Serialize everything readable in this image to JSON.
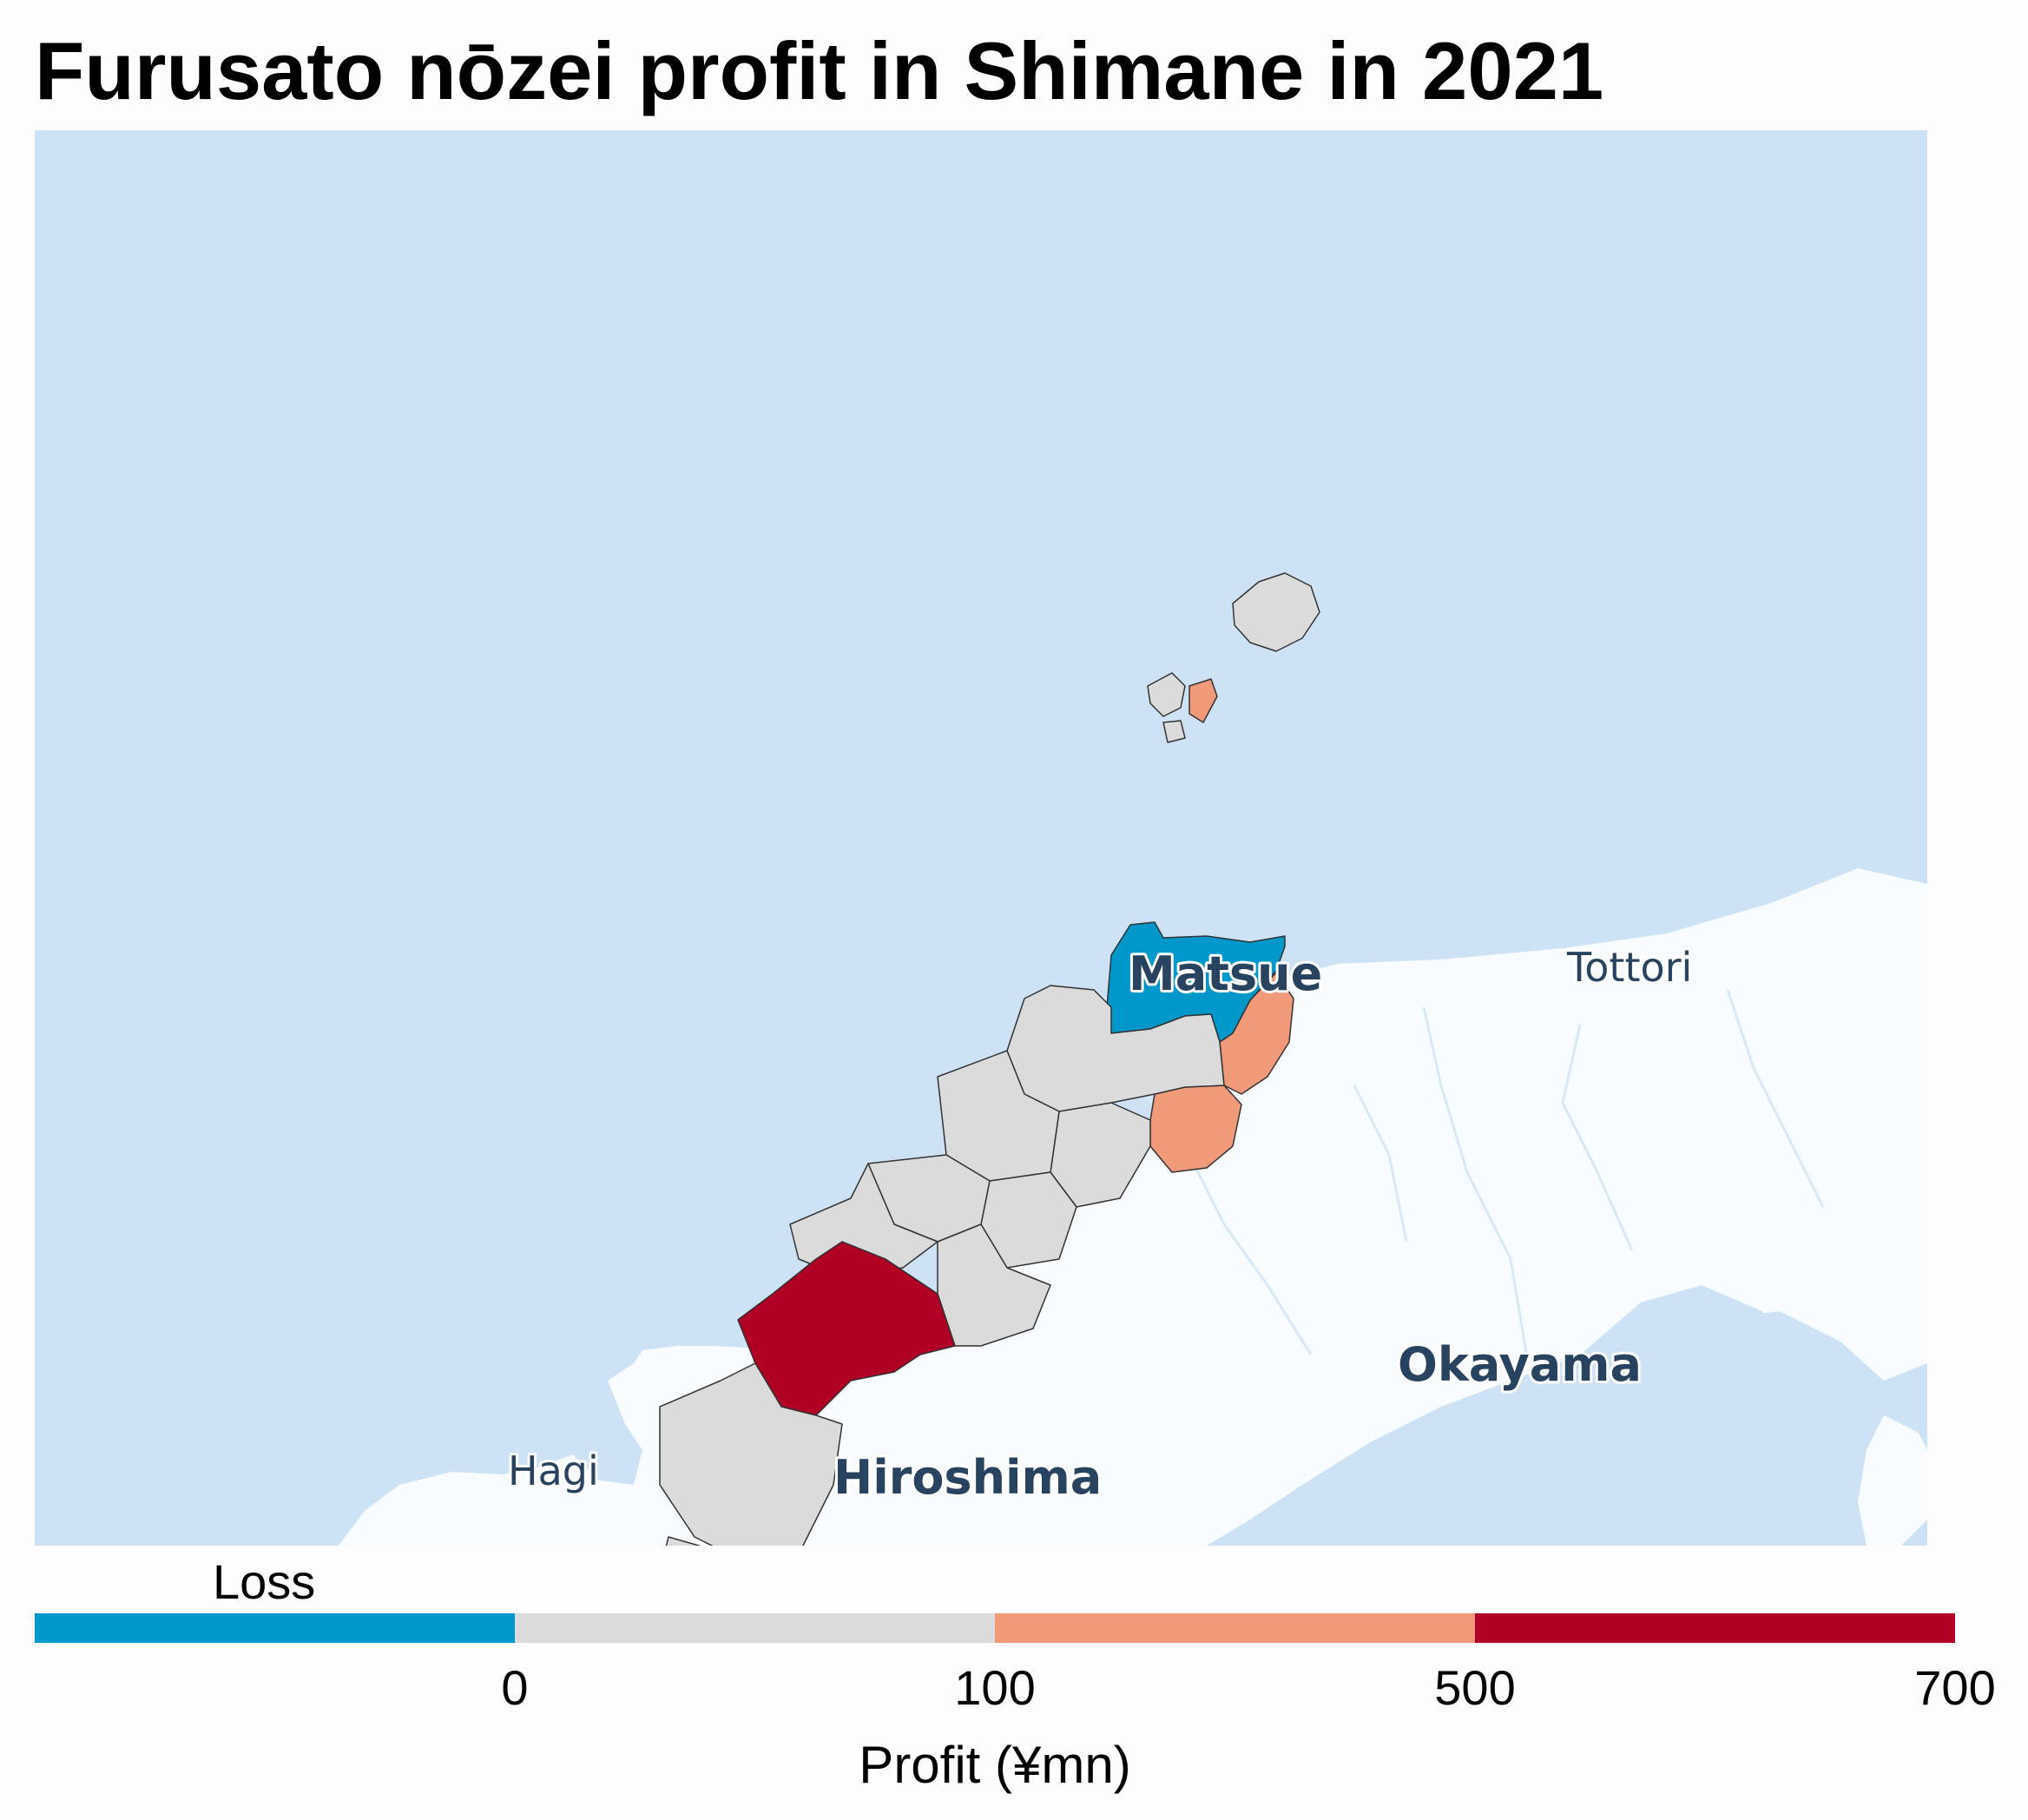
{
  "title": "Furusato nōzei profit in Shimane in 2021",
  "map": {
    "colors": {
      "sea": "#cde3f5",
      "land": "#f8fcff",
      "river": "#d7e9f7",
      "border": "#333333"
    },
    "labels": {
      "matsue": "Matsue",
      "tottori": "Tottori",
      "okayama": "Okayama",
      "hiroshima": "Hiroshima",
      "hagi": "Hagi"
    }
  },
  "legend": {
    "title": "Loss",
    "axis_label": "Profit (¥mn)",
    "ticks": [
      "0",
      "100",
      "500",
      "700"
    ],
    "bins": [
      {
        "range": "< 0",
        "color": "#0098cb"
      },
      {
        "range": "0–100",
        "color": "#dbdbdb"
      },
      {
        "range": "100–500",
        "color": "#f09a7a"
      },
      {
        "range": "500–700",
        "color": "#b00024"
      }
    ]
  }
}
